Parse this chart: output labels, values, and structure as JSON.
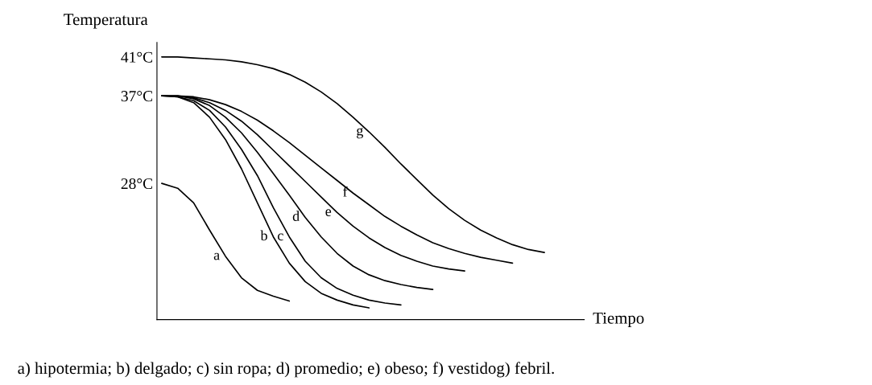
{
  "chart_data": {
    "type": "line",
    "ylabel": "Temperatura",
    "xlabel": "Tiempo",
    "categories": [
      null,
      null,
      null,
      null,
      null,
      null,
      null,
      null,
      null,
      null,
      null,
      null,
      null,
      null,
      null,
      null,
      null,
      null,
      null,
      null,
      null,
      null,
      null,
      null,
      null,
      null,
      null
    ],
    "ylim": [
      14,
      42.5
    ],
    "yticks": [
      {
        "value": 28,
        "label": "28°C"
      },
      {
        "value": 37,
        "label": "37°C"
      },
      {
        "value": 41,
        "label": "41°C"
      }
    ],
    "series": [
      {
        "name": "a",
        "color": "#000000",
        "values": [
          28.0,
          27.5,
          26.0,
          23.2,
          20.5,
          18.3,
          17.0,
          16.4,
          15.9,
          null,
          null,
          null,
          null,
          null,
          null,
          null,
          null,
          null,
          null,
          null,
          null,
          null,
          null,
          null,
          null,
          null,
          null
        ]
      },
      {
        "name": "b",
        "color": "#000000",
        "values": [
          37,
          36.9,
          36.3,
          34.8,
          32.5,
          29.5,
          26.0,
          22.5,
          19.8,
          17.9,
          16.7,
          16.0,
          15.5,
          15.2,
          null,
          null,
          null,
          null,
          null,
          null,
          null,
          null,
          null,
          null,
          null,
          null,
          null
        ]
      },
      {
        "name": "c",
        "color": "#000000",
        "values": [
          37,
          36.9,
          36.5,
          35.5,
          33.8,
          31.5,
          28.8,
          25.5,
          22.5,
          20.0,
          18.3,
          17.2,
          16.5,
          16.0,
          15.7,
          15.5,
          null,
          null,
          null,
          null,
          null,
          null,
          null,
          null,
          null,
          null,
          null
        ]
      },
      {
        "name": "d",
        "color": "#000000",
        "values": [
          37,
          37,
          36.7,
          36.0,
          34.8,
          33.2,
          31.2,
          29.0,
          26.8,
          24.5,
          22.5,
          20.8,
          19.5,
          18.6,
          18.0,
          17.6,
          17.3,
          17.1,
          null,
          null,
          null,
          null,
          null,
          null,
          null,
          null,
          null
        ]
      },
      {
        "name": "e",
        "color": "#000000",
        "values": [
          37,
          37,
          36.8,
          36.3,
          35.5,
          34.4,
          33.0,
          31.4,
          29.8,
          28.2,
          26.6,
          25.0,
          23.6,
          22.4,
          21.4,
          20.6,
          20.0,
          19.5,
          19.2,
          19.0,
          null,
          null,
          null,
          null,
          null,
          null,
          null
        ]
      },
      {
        "name": "f",
        "color": "#000000",
        "values": [
          37,
          37,
          36.9,
          36.6,
          36.1,
          35.4,
          34.5,
          33.4,
          32.2,
          30.9,
          29.6,
          28.3,
          27.0,
          25.8,
          24.6,
          23.6,
          22.7,
          21.9,
          21.3,
          20.8,
          20.4,
          20.1,
          19.8,
          null,
          null,
          null,
          null
        ]
      },
      {
        "name": "g",
        "color": "#000000",
        "values": [
          41,
          41,
          40.9,
          40.8,
          40.7,
          40.5,
          40.2,
          39.8,
          39.2,
          38.4,
          37.4,
          36.2,
          34.8,
          33.3,
          31.7,
          30.0,
          28.4,
          26.8,
          25.4,
          24.2,
          23.2,
          22.4,
          21.7,
          21.2,
          20.9,
          null,
          null
        ]
      }
    ],
    "annotations": [
      "a) hipotermia; b) delgado; c) sin ropa; d) promedio; e) obeso; f) vestidog) febril."
    ]
  }
}
